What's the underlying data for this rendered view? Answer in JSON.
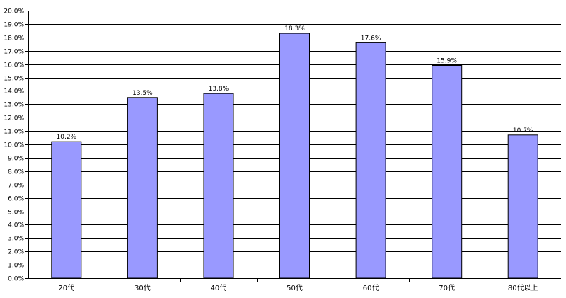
{
  "chart_data": {
    "type": "bar",
    "categories": [
      "20代",
      "30代",
      "40代",
      "50代",
      "60代",
      "70代",
      "80代以上"
    ],
    "values": [
      10.2,
      13.5,
      13.8,
      18.3,
      17.6,
      15.9,
      10.7
    ],
    "value_labels": [
      "10.2%",
      "13.5%",
      "13.8%",
      "18.3%",
      "17.6%",
      "15.9%",
      "10.7%"
    ],
    "y_ticks": [
      0,
      1,
      2,
      3,
      4,
      5,
      6,
      7,
      8,
      9,
      10,
      11,
      12,
      13,
      14,
      15,
      16,
      17,
      18,
      19,
      20
    ],
    "y_tick_labels": [
      "0.0%",
      "1.0%",
      "2.0%",
      "3.0%",
      "4.0%",
      "5.0%",
      "6.0%",
      "7.0%",
      "8.0%",
      "9.0%",
      "10.0%",
      "11.0%",
      "12.0%",
      "13.0%",
      "14.0%",
      "15.0%",
      "16.0%",
      "17.0%",
      "18.0%",
      "19.0%",
      "20.0%"
    ],
    "ylim": [
      0,
      20
    ],
    "title": "",
    "xlabel": "",
    "ylabel": "",
    "grid": true,
    "legend": "none",
    "colors": {
      "bar_fill": "#9999ff",
      "bar_stroke": "#000000",
      "grid": "#000000",
      "axis": "#000000"
    }
  }
}
